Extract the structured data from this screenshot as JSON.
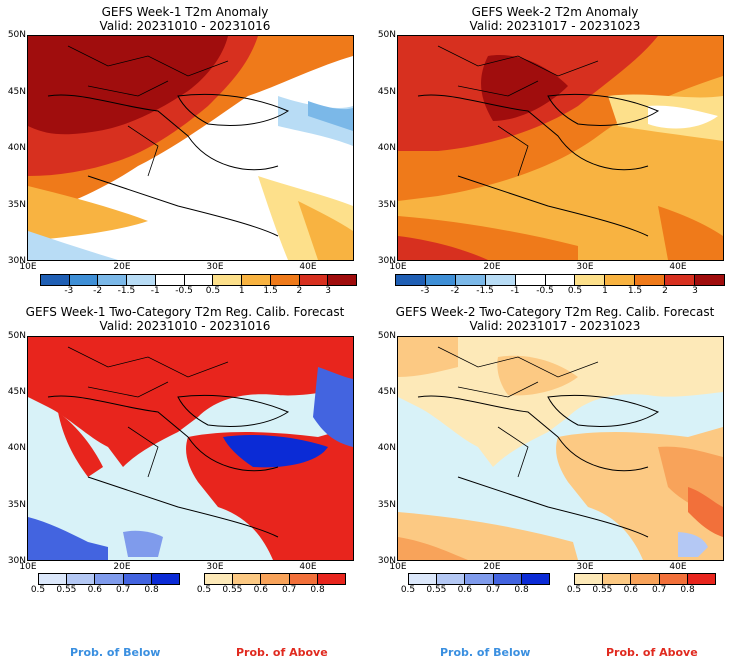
{
  "panels": [
    {
      "title": "GEFS Week-1 T2m Anomaly",
      "valid": "Valid: 20231010 - 20231016"
    },
    {
      "title": "GEFS Week-2 T2m Anomaly",
      "valid": "Valid: 20231017 - 20231023"
    },
    {
      "title": "GEFS Week-1 Two-Category T2m Reg. Calib. Forecast",
      "valid": "Valid: 20231010 - 20231016"
    },
    {
      "title": "GEFS Week-2 Two-Category T2m Reg. Calib. Forecast",
      "valid": "Valid: 20231017 - 20231023"
    }
  ],
  "lat_labels": [
    "50N",
    "45N",
    "40N",
    "35N",
    "30N"
  ],
  "lon_labels": [
    "10E",
    "20E",
    "30E",
    "40E"
  ],
  "anomaly_colorbar": {
    "ticks": [
      "-3",
      "-2",
      "-1.5",
      "-1",
      "-0.5",
      "0.5",
      "1",
      "1.5",
      "2",
      "3"
    ],
    "colors": [
      "#1f5fb4",
      "#3f8fd6",
      "#7bb8e8",
      "#b8dcf5",
      "#ffffff",
      "#ffffff",
      "#fde08b",
      "#f8b341",
      "#ef7a1a",
      "#d7301f",
      "#a00d0d"
    ]
  },
  "prob_below": {
    "ticks": [
      "0.5",
      "0.55",
      "0.6",
      "0.7",
      "0.8"
    ],
    "colors": [
      "#dce8fb",
      "#b4c8f4",
      "#7f9bec",
      "#4364e0",
      "#0b2bd6"
    ]
  },
  "prob_above": {
    "ticks": [
      "0.5",
      "0.55",
      "0.6",
      "0.7",
      "0.8"
    ],
    "colors": [
      "#fde9b8",
      "#fcc983",
      "#f8a35a",
      "#f2703a",
      "#e8251d"
    ]
  },
  "legend": {
    "below": "Prob. of Below",
    "above": "Prob. of Above"
  },
  "colors": {
    "ocean": "#d8f2f8",
    "below_label": "#3a8fe0",
    "above_label": "#e02a1f"
  }
}
